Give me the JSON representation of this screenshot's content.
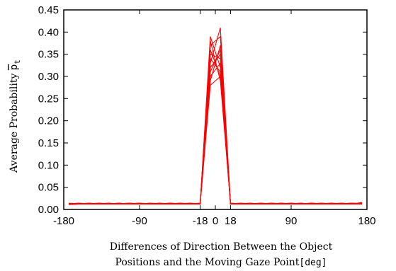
{
  "chart_data": {
    "type": "line",
    "xlabel_line1": "Differences of Direction Between the Object",
    "xlabel_line2_main": "Positions and the Moving Gaze Point",
    "xlabel_line2_unit": "[deg]",
    "ylabel_main": "Average Probability ",
    "ylabel_symbol": "p",
    "ylabel_subscript": "t",
    "xlim": [
      -180,
      180
    ],
    "ylim": [
      0,
      0.45
    ],
    "x_ticks": [
      {
        "value": -180,
        "label": "-180"
      },
      {
        "value": -90,
        "label": "-90"
      },
      {
        "value": -18,
        "label": "-18"
      },
      {
        "value": 0,
        "label": "0"
      },
      {
        "value": 18,
        "label": "18"
      },
      {
        "value": 90,
        "label": "90"
      },
      {
        "value": 180,
        "label": "180"
      }
    ],
    "y_ticks": [
      {
        "value": 0,
        "label": "0.00"
      },
      {
        "value": 0.05,
        "label": "0.05"
      },
      {
        "value": 0.1,
        "label": "0.10"
      },
      {
        "value": 0.15,
        "label": "0.15"
      },
      {
        "value": 0.2,
        "label": "0.20"
      },
      {
        "value": 0.25,
        "label": "0.25"
      },
      {
        "value": 0.3,
        "label": "0.30"
      },
      {
        "value": 0.35,
        "label": "0.35"
      },
      {
        "value": 0.4,
        "label": "0.40"
      },
      {
        "value": 0.45,
        "label": "0.45"
      }
    ],
    "x": [
      -174,
      -162,
      -150,
      -138,
      -126,
      -114,
      -102,
      -90,
      -78,
      -66,
      -54,
      -42,
      -30,
      -18,
      -6,
      6,
      18,
      30,
      42,
      54,
      66,
      78,
      90,
      102,
      114,
      126,
      138,
      150,
      162,
      174
    ],
    "series": [
      {
        "values": [
          0.012,
          0.013,
          0.012,
          0.014,
          0.013,
          0.012,
          0.013,
          0.014,
          0.012,
          0.013,
          0.012,
          0.013,
          0.014,
          0.012,
          0.39,
          0.32,
          0.013,
          0.012,
          0.013,
          0.012,
          0.014,
          0.013,
          0.012,
          0.013,
          0.012,
          0.014,
          0.013,
          0.012,
          0.013,
          0.012
        ]
      },
      {
        "values": [
          0.013,
          0.012,
          0.014,
          0.012,
          0.013,
          0.014,
          0.012,
          0.013,
          0.012,
          0.014,
          0.013,
          0.012,
          0.013,
          0.013,
          0.33,
          0.41,
          0.012,
          0.013,
          0.012,
          0.014,
          0.012,
          0.013,
          0.014,
          0.012,
          0.013,
          0.012,
          0.013,
          0.014,
          0.012,
          0.016
        ]
      },
      {
        "values": [
          0.011,
          0.012,
          0.013,
          0.012,
          0.012,
          0.013,
          0.014,
          0.012,
          0.013,
          0.012,
          0.014,
          0.013,
          0.012,
          0.013,
          0.36,
          0.3,
          0.014,
          0.012,
          0.013,
          0.013,
          0.012,
          0.014,
          0.013,
          0.012,
          0.014,
          0.013,
          0.012,
          0.013,
          0.014,
          0.013
        ]
      },
      {
        "values": [
          0.012,
          0.014,
          0.013,
          0.013,
          0.014,
          0.012,
          0.013,
          0.012,
          0.014,
          0.013,
          0.012,
          0.014,
          0.013,
          0.012,
          0.29,
          0.37,
          0.013,
          0.014,
          0.012,
          0.013,
          0.013,
          0.012,
          0.013,
          0.014,
          0.012,
          0.013,
          0.014,
          0.012,
          0.013,
          0.012
        ]
      },
      {
        "values": [
          0.013,
          0.012,
          0.012,
          0.013,
          0.012,
          0.014,
          0.012,
          0.013,
          0.013,
          0.012,
          0.013,
          0.012,
          0.014,
          0.013,
          0.35,
          0.34,
          0.012,
          0.013,
          0.014,
          0.012,
          0.013,
          0.014,
          0.012,
          0.013,
          0.013,
          0.012,
          0.014,
          0.013,
          0.012,
          0.014
        ]
      },
      {
        "values": [
          0.012,
          0.013,
          0.014,
          0.012,
          0.013,
          0.013,
          0.012,
          0.014,
          0.012,
          0.013,
          0.014,
          0.012,
          0.012,
          0.014,
          0.31,
          0.36,
          0.013,
          0.012,
          0.013,
          0.014,
          0.012,
          0.012,
          0.014,
          0.013,
          0.012,
          0.014,
          0.012,
          0.013,
          0.014,
          0.013
        ]
      },
      {
        "values": [
          0.014,
          0.013,
          0.012,
          0.014,
          0.012,
          0.013,
          0.013,
          0.012,
          0.013,
          0.014,
          0.012,
          0.013,
          0.013,
          0.012,
          0.38,
          0.29,
          0.014,
          0.013,
          0.012,
          0.012,
          0.014,
          0.013,
          0.012,
          0.012,
          0.014,
          0.013,
          0.012,
          0.014,
          0.013,
          0.012
        ]
      },
      {
        "values": [
          0.012,
          0.012,
          0.013,
          0.013,
          0.014,
          0.012,
          0.014,
          0.013,
          0.012,
          0.012,
          0.013,
          0.014,
          0.012,
          0.013,
          0.3,
          0.33,
          0.012,
          0.014,
          0.013,
          0.012,
          0.013,
          0.012,
          0.013,
          0.014,
          0.012,
          0.012,
          0.013,
          0.012,
          0.014,
          0.013
        ]
      },
      {
        "values": [
          0.013,
          0.014,
          0.012,
          0.012,
          0.013,
          0.013,
          0.012,
          0.012,
          0.014,
          0.013,
          0.012,
          0.012,
          0.013,
          0.014,
          0.37,
          0.39,
          0.013,
          0.012,
          0.012,
          0.013,
          0.014,
          0.012,
          0.012,
          0.013,
          0.014,
          0.012,
          0.013,
          0.012,
          0.012,
          0.014
        ]
      },
      {
        "values": [
          0.012,
          0.013,
          0.013,
          0.014,
          0.012,
          0.012,
          0.013,
          0.014,
          0.013,
          0.012,
          0.014,
          0.013,
          0.012,
          0.012,
          0.34,
          0.31,
          0.012,
          0.013,
          0.014,
          0.012,
          0.012,
          0.013,
          0.014,
          0.012,
          0.013,
          0.014,
          0.012,
          0.013,
          0.012,
          0.013
        ]
      },
      {
        "values": [
          0.011,
          0.012,
          0.012,
          0.013,
          0.013,
          0.014,
          0.012,
          0.013,
          0.012,
          0.013,
          0.012,
          0.014,
          0.013,
          0.013,
          0.32,
          0.35,
          0.014,
          0.012,
          0.013,
          0.013,
          0.012,
          0.014,
          0.012,
          0.013,
          0.012,
          0.013,
          0.014,
          0.012,
          0.013,
          0.012
        ]
      },
      {
        "values": [
          0.013,
          0.012,
          0.014,
          0.013,
          0.012,
          0.013,
          0.014,
          0.012,
          0.013,
          0.012,
          0.013,
          0.012,
          0.014,
          0.012,
          0.28,
          0.3,
          0.013,
          0.013,
          0.012,
          0.014,
          0.013,
          0.012,
          0.013,
          0.012,
          0.014,
          0.012,
          0.013,
          0.014,
          0.012,
          0.013
        ]
      }
    ]
  }
}
